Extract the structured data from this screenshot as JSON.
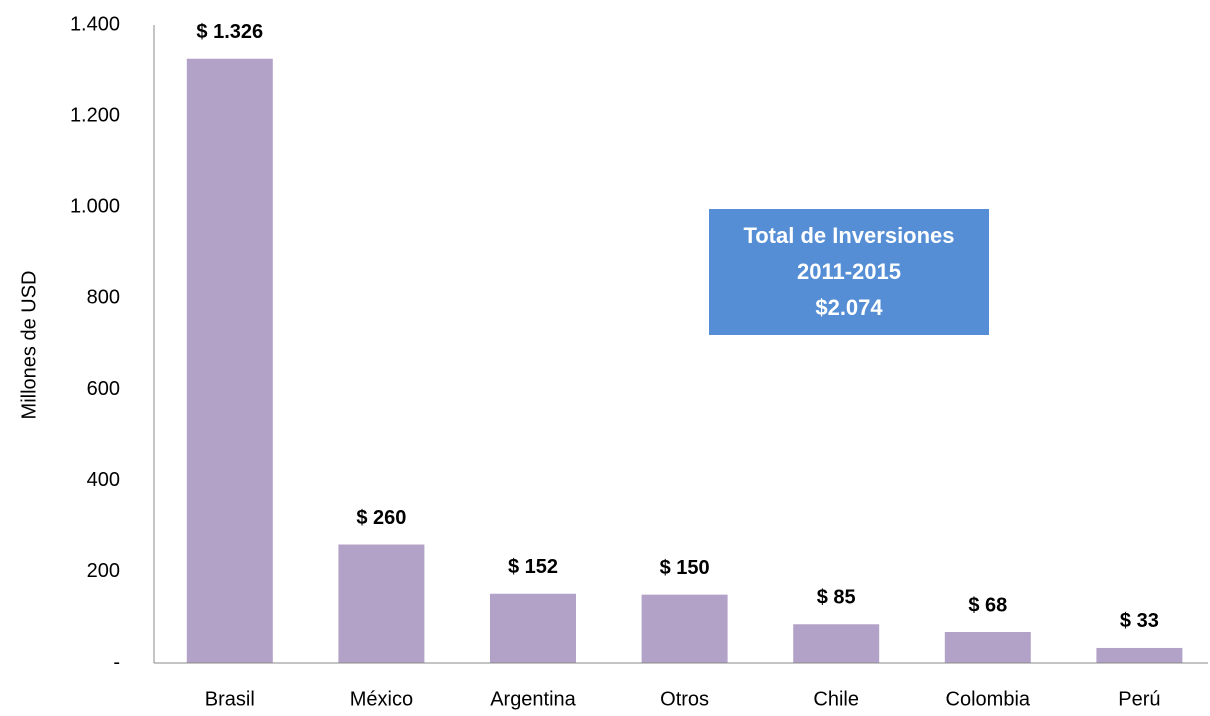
{
  "chart_data": {
    "type": "bar",
    "y_axis_label": "Millones de USD",
    "categories": [
      "Brasil",
      "México",
      "Argentina",
      "Otros",
      "Chile",
      "Colombia",
      "Perú"
    ],
    "values": [
      1326,
      260,
      152,
      150,
      85,
      68,
      33
    ],
    "value_labels": [
      "$ 1.326",
      "$ 260",
      "$ 152",
      "$ 150",
      "$ 85",
      "$ 68",
      "$ 33"
    ],
    "color": "#b3a2c7",
    "ylim": [
      0,
      1400
    ],
    "yticks": [
      {
        "value": 0,
        "label": "-"
      },
      200,
      400,
      600,
      800,
      {
        "value": 1000,
        "label": "1.000"
      },
      {
        "value": 1200,
        "label": "1.200"
      },
      {
        "value": 1400,
        "label": "1.400"
      }
    ],
    "grid": false,
    "annotation": [
      "Total de Inversiones",
      "2011-2015",
      "$2.074"
    ],
    "annotation_color": "#558ed5"
  }
}
